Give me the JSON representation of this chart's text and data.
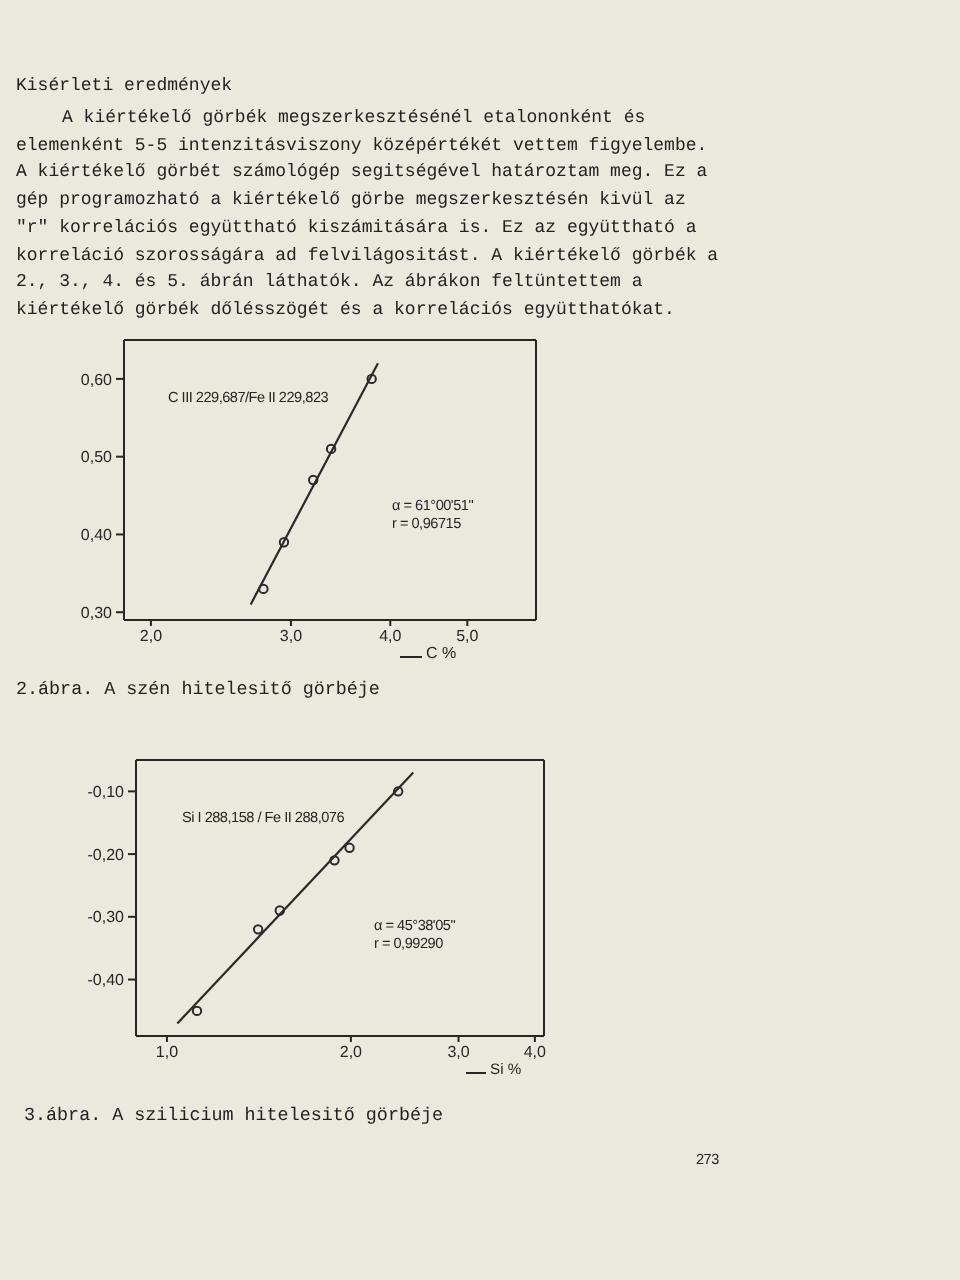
{
  "chart_data": [
    {
      "type": "other",
      "title": "Kisérleti eredmények",
      "annotations": [
        "A kiértékelő görbék megszerkesztésénél etalononként és elemenként 5-5 intenzitásviszony középértékét vettem figyelembe. A kiértékelő görbét számológép segitségével határoztam meg. Ez a gép programozható a kiértékelő görbe megszerkesztésén kivül az \"r\" korrelációs együttható kiszámitására is. Ez az együttható a korreláció szorosságára ad felvilágositást. A kiértékelő görbék a 2., 3., 4. és 5. ábrán láthatók. Az ábrákon feltüntettem a kiértékelő görbék dőlésszögét és a korrelációs együtthatókat."
      ]
    },
    {
      "type": "scatter",
      "title": "2.ábra. A szén hitelesitő görbéje",
      "xlabel": "C %",
      "log": "x",
      "xlim": [
        1.85,
        6.1
      ],
      "xticks": [
        {
          "value": 2,
          "label": "2,0"
        },
        {
          "value": 3,
          "label": "3,0"
        },
        {
          "value": 4,
          "label": "4,0"
        },
        {
          "value": 5,
          "label": "5,0"
        }
      ],
      "ylim": [
        0.29,
        0.65
      ],
      "yticks": [
        {
          "value": 0.3,
          "label": "0,30"
        },
        {
          "value": 0.4,
          "label": "0,40"
        },
        {
          "value": 0.5,
          "label": "0,50"
        },
        {
          "value": 0.6,
          "label": "0,60"
        }
      ],
      "annotations": [
        "C III 229,687/Fe II 229,823",
        "α = 61°00'51\"",
        "r = 0,96715"
      ],
      "series": [
        {
          "type": "scatter",
          "marker": "circle",
          "color": "#2a2a2a",
          "x": [
            2.77,
            2.94,
            3.2,
            3.37,
            3.79
          ],
          "values": [
            0.33,
            0.39,
            0.47,
            0.51,
            0.6
          ]
        },
        {
          "type": "line",
          "color": "#2a2a2a",
          "x": [
            2.67,
            3.86
          ],
          "values": [
            0.31,
            0.62
          ]
        }
      ]
    },
    {
      "type": "scatter",
      "title": "3.ábra. A szilicium hitelesitő görbéje",
      "xlabel": "Si %",
      "log": "x",
      "xlim": [
        0.89,
        4.14
      ],
      "xticks": [
        {
          "value": 1,
          "label": "1,0"
        },
        {
          "value": 2,
          "label": "2,0"
        },
        {
          "value": 3,
          "label": "3,0"
        },
        {
          "value": 4,
          "label": "4,0"
        }
      ],
      "ylim": [
        -0.49,
        -0.05
      ],
      "yticks": [
        {
          "value": -0.1,
          "label": "-0,10"
        },
        {
          "value": -0.2,
          "label": "-0,20"
        },
        {
          "value": -0.3,
          "label": "-0,30"
        },
        {
          "value": -0.4,
          "label": "-0,40"
        }
      ],
      "annotations": [
        "Si I 288,158 / Fe II 288,076",
        "α = 45°38'05\"",
        "r = 0,99290",
        "273"
      ],
      "series": [
        {
          "type": "scatter",
          "marker": "circle",
          "color": "#2a2a2a",
          "x": [
            1.12,
            1.41,
            1.53,
            1.88,
            1.99,
            2.39
          ],
          "values": [
            -0.45,
            -0.32,
            -0.29,
            -0.21,
            -0.19,
            -0.1
          ]
        },
        {
          "type": "line",
          "color": "#2a2a2a",
          "x": [
            1.04,
            2.53
          ],
          "values": [
            -0.47,
            -0.07
          ]
        }
      ]
    }
  ]
}
